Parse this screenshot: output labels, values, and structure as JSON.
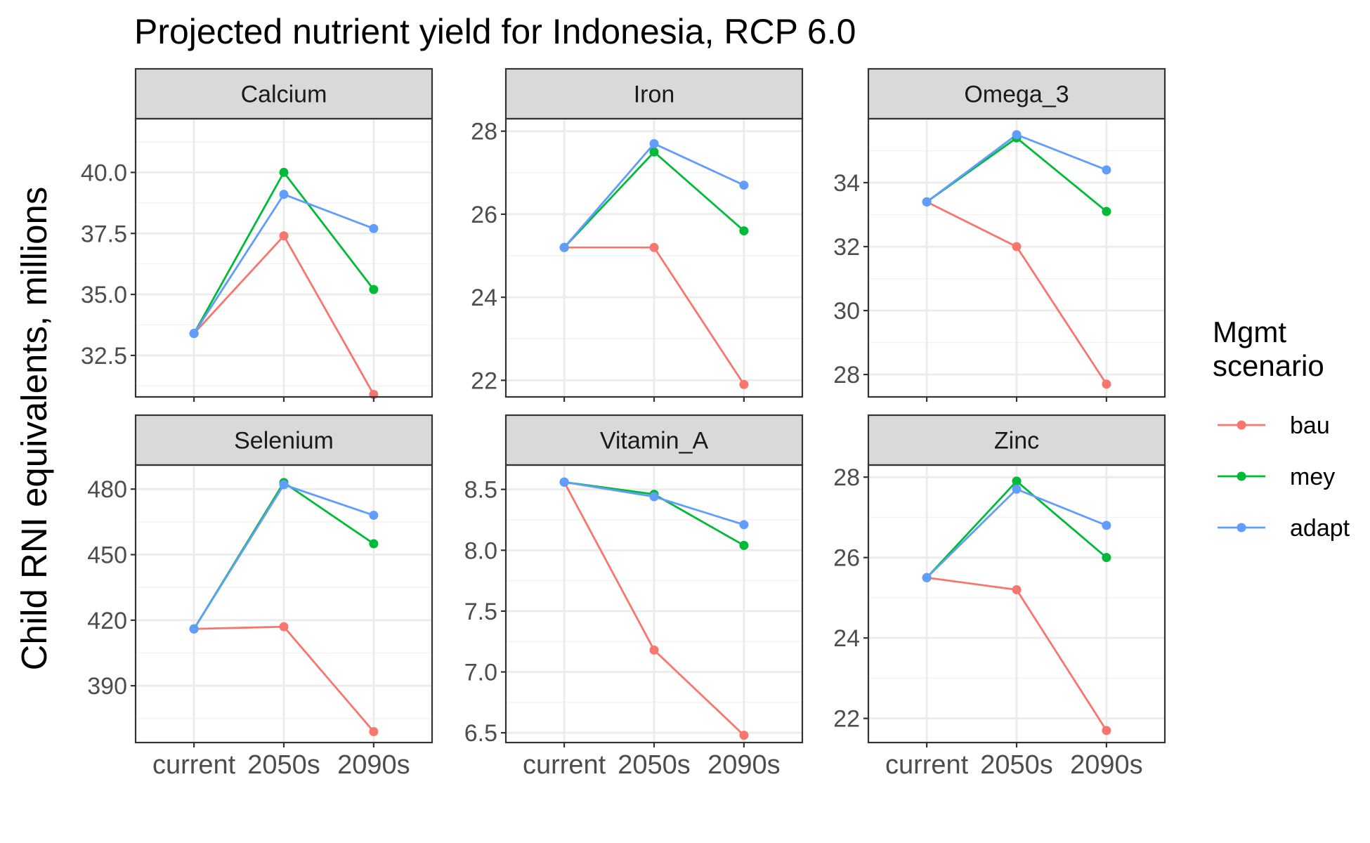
{
  "chart_data": {
    "type": "line",
    "title": "Projected nutrient yield for Indonesia, RCP 6.0",
    "ylabel": "Child RNI equivalents, millions",
    "xlabel": "",
    "categories": [
      "current",
      "2050s",
      "2090s"
    ],
    "legend": {
      "title_lines": [
        "Mgmt",
        "scenario"
      ],
      "placement": "right",
      "entries": [
        {
          "name": "bau",
          "color": "#F8766D"
        },
        {
          "name": "mey",
          "color": "#00BA38"
        },
        {
          "name": "adapt",
          "color": "#619CFF"
        }
      ]
    },
    "grid": true,
    "panels": [
      {
        "name": "Calcium",
        "ylim": [
          30.8,
          42.2
        ],
        "yticks": [
          32.5,
          35.0,
          37.5,
          40.0
        ],
        "ytick_labels": [
          "32.5",
          "35.0",
          "37.5",
          "40.0"
        ],
        "series": [
          {
            "name": "bau",
            "values": [
              33.4,
              37.4,
              30.9
            ]
          },
          {
            "name": "mey",
            "values": [
              33.4,
              40.0,
              35.2
            ]
          },
          {
            "name": "adapt",
            "values": [
              33.4,
              39.1,
              37.7
            ]
          }
        ]
      },
      {
        "name": "Iron",
        "ylim": [
          21.6,
          28.3
        ],
        "yticks": [
          22,
          24,
          26,
          28
        ],
        "ytick_labels": [
          "22",
          "24",
          "26",
          "28"
        ],
        "series": [
          {
            "name": "bau",
            "values": [
              25.2,
              25.2,
              21.9
            ]
          },
          {
            "name": "mey",
            "values": [
              25.2,
              27.5,
              25.6
            ]
          },
          {
            "name": "adapt",
            "values": [
              25.2,
              27.7,
              26.7
            ]
          }
        ]
      },
      {
        "name": "Omega_3",
        "ylim": [
          27.3,
          36.0
        ],
        "yticks": [
          28,
          30,
          32,
          34
        ],
        "ytick_labels": [
          "28",
          "30",
          "32",
          "34"
        ],
        "series": [
          {
            "name": "bau",
            "values": [
              33.4,
              32.0,
              27.7
            ]
          },
          {
            "name": "mey",
            "values": [
              33.4,
              35.4,
              33.1
            ]
          },
          {
            "name": "adapt",
            "values": [
              33.4,
              35.5,
              34.4
            ]
          }
        ]
      },
      {
        "name": "Selenium",
        "ylim": [
          364,
          491
        ],
        "yticks": [
          390,
          420,
          450,
          480
        ],
        "ytick_labels": [
          "390",
          "420",
          "450",
          "480"
        ],
        "series": [
          {
            "name": "bau",
            "values": [
              416,
              417,
              369
            ]
          },
          {
            "name": "mey",
            "values": [
              416,
              483,
              455
            ]
          },
          {
            "name": "adapt",
            "values": [
              416,
              482,
              468
            ]
          }
        ]
      },
      {
        "name": "Vitamin_A",
        "ylim": [
          6.42,
          8.7
        ],
        "yticks": [
          6.5,
          7.0,
          7.5,
          8.0,
          8.5
        ],
        "ytick_labels": [
          "6.5",
          "7.0",
          "7.5",
          "8.0",
          "8.5"
        ],
        "series": [
          {
            "name": "bau",
            "values": [
              8.56,
              7.18,
              6.48
            ]
          },
          {
            "name": "mey",
            "values": [
              8.56,
              8.46,
              8.04
            ]
          },
          {
            "name": "adapt",
            "values": [
              8.56,
              8.44,
              8.21
            ]
          }
        ]
      },
      {
        "name": "Zinc",
        "ylim": [
          21.4,
          28.3
        ],
        "yticks": [
          22,
          24,
          26,
          28
        ],
        "ytick_labels": [
          "22",
          "24",
          "26",
          "28"
        ],
        "series": [
          {
            "name": "bau",
            "values": [
              25.5,
              25.2,
              21.7
            ]
          },
          {
            "name": "mey",
            "values": [
              25.5,
              27.9,
              26.0
            ]
          },
          {
            "name": "adapt",
            "values": [
              25.5,
              27.7,
              26.8
            ]
          }
        ]
      }
    ]
  }
}
